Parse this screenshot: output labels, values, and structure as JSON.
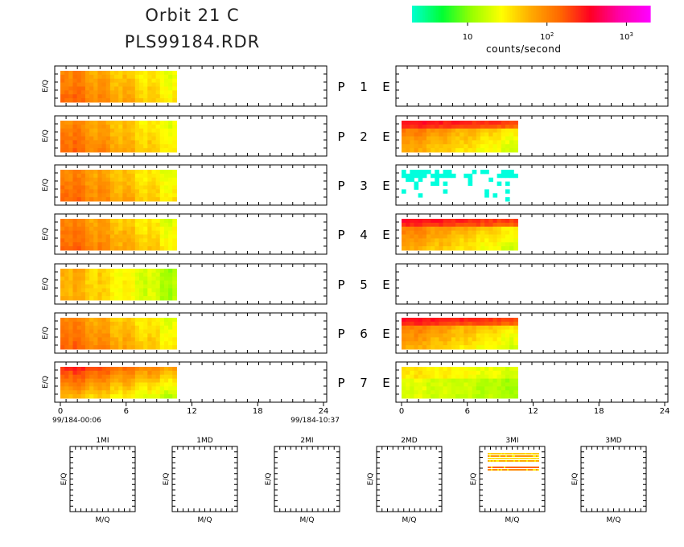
{
  "header": {
    "line1": "Orbit 21 C",
    "line2": "PLS99184.RDR"
  },
  "colorbar": {
    "units": "counts/second",
    "tick_labels": [
      {
        "base": "10",
        "exp": ""
      },
      {
        "base": "10",
        "exp": "2"
      },
      {
        "base": "10",
        "exp": "3"
      }
    ],
    "tick_log_values": [
      1,
      2,
      3
    ],
    "log_range": [
      0.3,
      3.3
    ],
    "stops": [
      "#00ffcc",
      "#00ff33",
      "#99ff00",
      "#ffff00",
      "#ffaa00",
      "#ff6600",
      "#ff0022",
      "#ff00aa",
      "#ff00ff"
    ]
  },
  "chart_data": {
    "type": "heatmap",
    "ylabel": "E/Q",
    "x_ticks": [
      0,
      6,
      12,
      18,
      24
    ],
    "xlim": [
      0,
      24
    ],
    "data_end_hour": 10.6,
    "time_start": "99/184-00:06",
    "time_end": "99/184-10:37",
    "rows": [
      {
        "p": "P",
        "num": "1",
        "e": "E",
        "left": "orange-yellow-green",
        "right": "none"
      },
      {
        "p": "P",
        "num": "2",
        "e": "E",
        "left": "orange-yellow-green",
        "right": "red-top-band"
      },
      {
        "p": "P",
        "num": "3",
        "e": "E",
        "left": "orange-yellow-green",
        "right": "sparse-cyan"
      },
      {
        "p": "P",
        "num": "4",
        "e": "E",
        "left": "orange-yellow-green",
        "right": "red-top-band"
      },
      {
        "p": "P",
        "num": "5",
        "e": "E",
        "left": "yellow-green",
        "right": "none"
      },
      {
        "p": "P",
        "num": "6",
        "e": "E",
        "left": "orange-yellow-green",
        "right": "red-top-band"
      },
      {
        "p": "P",
        "num": "7",
        "e": "E",
        "left": "red-orange-yellow",
        "right": "green-yellow"
      }
    ],
    "bottom_panels": [
      {
        "label": "1MI",
        "pattern": "none"
      },
      {
        "label": "1MD",
        "pattern": "none"
      },
      {
        "label": "2MI",
        "pattern": "none"
      },
      {
        "label": "2MD",
        "pattern": "none"
      },
      {
        "label": "3MI",
        "pattern": "stripes"
      },
      {
        "label": "3MD",
        "pattern": "none"
      }
    ],
    "bottom_xlabel": "M/Q",
    "bottom_ylabel": "E/Q"
  }
}
